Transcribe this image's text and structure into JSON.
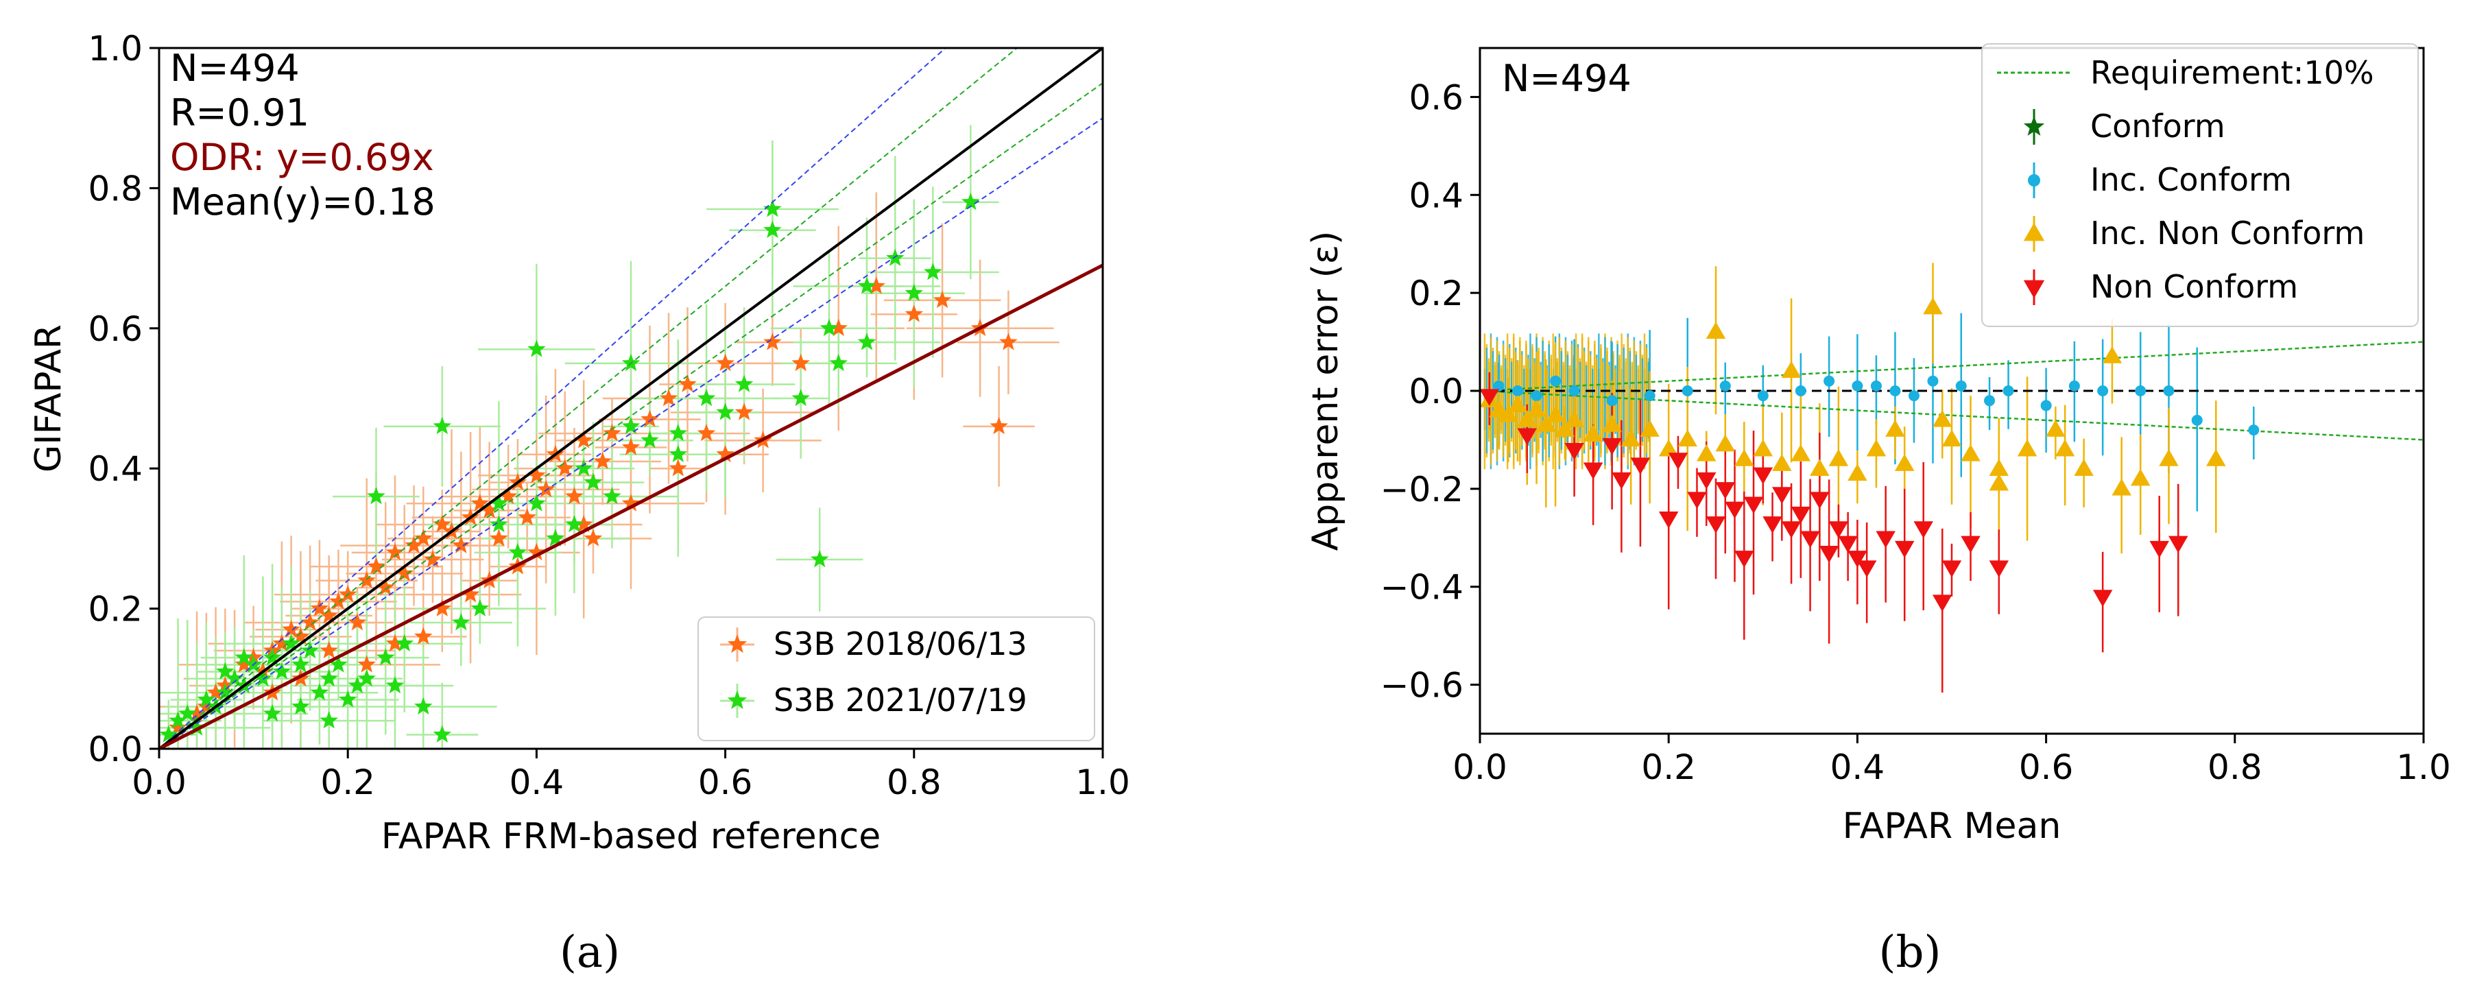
{
  "chart_data": [
    {
      "type": "scatter",
      "panel_label": "(a)",
      "xlabel": "FAPAR FRM-based reference",
      "ylabel": "GIFAPAR",
      "xlim": [
        0,
        1.0
      ],
      "ylim": [
        0,
        1.0
      ],
      "xticks": [
        "0.0",
        "0.2",
        "0.4",
        "0.6",
        "0.8",
        "1.0"
      ],
      "yticks": [
        "0.0",
        "0.2",
        "0.4",
        "0.6",
        "0.8",
        "1.0"
      ],
      "annotations": {
        "n": "N=494",
        "r": "R=0.91",
        "odr": "ODR: y=0.69x",
        "mean": "Mean(y)=0.18"
      },
      "colors": {
        "s2018": "#ff6a13",
        "s2021": "#22dd11",
        "odr": "#8b0000",
        "identity": "#000000",
        "band_blue": "#3344ee",
        "band_green": "#22aa22"
      },
      "lines": {
        "identity": {
          "slope": 1.0,
          "x": [
            0,
            1
          ]
        },
        "odr": {
          "slope": 0.69,
          "x": [
            0,
            1
          ]
        },
        "blue_band": {
          "slopes": [
            1.2,
            0.9
          ]
        },
        "green_band": {
          "slopes": [
            1.1,
            0.95
          ]
        }
      },
      "legend": {
        "position": "lower right",
        "entries": [
          "S3B 2018/06/13",
          "S3B 2021/07/19"
        ]
      },
      "series": [
        {
          "name": "S3B 2018/06/13",
          "marker": "star",
          "x": [
            0.02,
            0.04,
            0.05,
            0.06,
            0.07,
            0.08,
            0.09,
            0.1,
            0.11,
            0.12,
            0.13,
            0.14,
            0.15,
            0.16,
            0.17,
            0.18,
            0.19,
            0.2,
            0.21,
            0.22,
            0.23,
            0.24,
            0.25,
            0.26,
            0.27,
            0.28,
            0.29,
            0.3,
            0.31,
            0.32,
            0.33,
            0.34,
            0.35,
            0.36,
            0.37,
            0.38,
            0.39,
            0.4,
            0.41,
            0.42,
            0.43,
            0.44,
            0.45,
            0.46,
            0.47,
            0.48,
            0.5,
            0.52,
            0.54,
            0.56,
            0.58,
            0.6,
            0.62,
            0.65,
            0.68,
            0.72,
            0.76,
            0.8,
            0.83,
            0.87,
            0.89,
            0.9,
            0.3,
            0.35,
            0.4,
            0.45,
            0.5,
            0.25,
            0.33,
            0.42,
            0.38,
            0.28,
            0.46,
            0.22,
            0.15,
            0.12,
            0.18,
            0.55,
            0.6,
            0.64
          ],
          "y": [
            0.03,
            0.05,
            0.06,
            0.08,
            0.09,
            0.1,
            0.12,
            0.13,
            0.11,
            0.14,
            0.15,
            0.17,
            0.16,
            0.18,
            0.2,
            0.19,
            0.21,
            0.22,
            0.18,
            0.24,
            0.26,
            0.23,
            0.28,
            0.25,
            0.29,
            0.3,
            0.27,
            0.32,
            0.31,
            0.29,
            0.33,
            0.35,
            0.34,
            0.3,
            0.36,
            0.38,
            0.33,
            0.39,
            0.37,
            0.42,
            0.4,
            0.36,
            0.44,
            0.38,
            0.41,
            0.45,
            0.43,
            0.47,
            0.5,
            0.52,
            0.45,
            0.55,
            0.48,
            0.58,
            0.55,
            0.6,
            0.66,
            0.62,
            0.64,
            0.6,
            0.46,
            0.58,
            0.2,
            0.24,
            0.28,
            0.32,
            0.35,
            0.15,
            0.22,
            0.3,
            0.26,
            0.16,
            0.3,
            0.12,
            0.1,
            0.08,
            0.14,
            0.4,
            0.42,
            0.44
          ]
        },
        {
          "name": "S3B 2021/07/19",
          "marker": "star",
          "x": [
            0.01,
            0.02,
            0.03,
            0.04,
            0.05,
            0.06,
            0.07,
            0.08,
            0.09,
            0.1,
            0.11,
            0.12,
            0.13,
            0.14,
            0.15,
            0.16,
            0.17,
            0.18,
            0.19,
            0.2,
            0.21,
            0.22,
            0.24,
            0.26,
            0.28,
            0.3,
            0.32,
            0.34,
            0.36,
            0.38,
            0.4,
            0.42,
            0.44,
            0.46,
            0.48,
            0.5,
            0.52,
            0.55,
            0.58,
            0.6,
            0.62,
            0.65,
            0.68,
            0.7,
            0.72,
            0.75,
            0.78,
            0.8,
            0.82,
            0.86,
            0.23,
            0.3,
            0.36,
            0.4,
            0.45,
            0.5,
            0.55,
            0.65,
            0.71,
            0.75,
            0.12,
            0.15,
            0.18,
            0.07,
            0.09,
            0.25
          ],
          "y": [
            0.02,
            0.04,
            0.05,
            0.03,
            0.07,
            0.06,
            0.08,
            0.1,
            0.09,
            0.12,
            0.1,
            0.13,
            0.11,
            0.15,
            0.12,
            0.14,
            0.08,
            0.1,
            0.12,
            0.07,
            0.09,
            0.1,
            0.13,
            0.15,
            0.06,
            0.02,
            0.18,
            0.2,
            0.35,
            0.28,
            0.57,
            0.3,
            0.32,
            0.38,
            0.36,
            0.46,
            0.44,
            0.42,
            0.5,
            0.48,
            0.52,
            0.77,
            0.5,
            0.27,
            0.55,
            0.58,
            0.7,
            0.65,
            0.68,
            0.78,
            0.36,
            0.46,
            0.32,
            0.35,
            0.4,
            0.55,
            0.45,
            0.74,
            0.6,
            0.66,
            0.05,
            0.06,
            0.04,
            0.11,
            0.13,
            0.09
          ]
        }
      ]
    },
    {
      "type": "scatter",
      "panel_label": "(b)",
      "xlabel": "FAPAR Mean",
      "ylabel": "Apparent error (ε)",
      "xlim": [
        0,
        1.0
      ],
      "ylim": [
        -0.7,
        0.7
      ],
      "xticks": [
        "0.0",
        "0.2",
        "0.4",
        "0.6",
        "0.8",
        "1.0"
      ],
      "yticks": [
        "−0.6",
        "−0.4",
        "−0.2",
        "0.0",
        "0.2",
        "0.4",
        "0.6"
      ],
      "yticks_values": [
        -0.6,
        -0.4,
        -0.2,
        0.0,
        0.2,
        0.4,
        0.6
      ],
      "annotations": {
        "n": "N=494"
      },
      "colors": {
        "requirement": "#22aa22",
        "conform": "#0a6e0a",
        "inc_conform": "#1ab0e0",
        "inc_non_conform": "#f0b400",
        "non_conform": "#ee1111"
      },
      "requirement_percent": 10,
      "legend": {
        "position": "upper right",
        "entries": [
          "Requirement:10%",
          "Conform",
          "Inc. Conform",
          "Inc. Non Conform",
          "Non Conform"
        ]
      },
      "series": [
        {
          "name": "Inc. Conform",
          "marker": "circle",
          "x": [
            0.02,
            0.04,
            0.06,
            0.08,
            0.1,
            0.14,
            0.18,
            0.22,
            0.26,
            0.3,
            0.34,
            0.37,
            0.4,
            0.44,
            0.48,
            0.51,
            0.54,
            0.56,
            0.6,
            0.63,
            0.66,
            0.7,
            0.73,
            0.76,
            0.82,
            0.42,
            0.46
          ],
          "y": [
            0.01,
            0.0,
            -0.01,
            0.02,
            0.0,
            -0.02,
            -0.01,
            0.0,
            0.01,
            -0.01,
            0.0,
            0.02,
            0.01,
            0.0,
            0.02,
            0.01,
            -0.02,
            0.0,
            -0.03,
            0.01,
            0.0,
            0.0,
            0.0,
            -0.06,
            -0.08,
            0.01,
            -0.01
          ]
        },
        {
          "name": "Inc. Non Conform",
          "marker": "triangle-up",
          "x": [
            0.01,
            0.02,
            0.03,
            0.04,
            0.05,
            0.06,
            0.07,
            0.08,
            0.09,
            0.1,
            0.12,
            0.14,
            0.16,
            0.18,
            0.2,
            0.22,
            0.24,
            0.26,
            0.28,
            0.3,
            0.32,
            0.34,
            0.36,
            0.38,
            0.4,
            0.42,
            0.45,
            0.48,
            0.5,
            0.52,
            0.55,
            0.58,
            0.61,
            0.64,
            0.67,
            0.7,
            0.73,
            0.78,
            0.25,
            0.33,
            0.44,
            0.49,
            0.55,
            0.62,
            0.68
          ],
          "y": [
            -0.02,
            -0.04,
            -0.05,
            -0.03,
            -0.06,
            -0.04,
            -0.07,
            -0.05,
            -0.08,
            -0.06,
            -0.09,
            -0.07,
            -0.1,
            -0.08,
            -0.12,
            -0.1,
            -0.13,
            -0.11,
            -0.14,
            -0.12,
            -0.15,
            -0.13,
            -0.16,
            -0.14,
            -0.17,
            -0.12,
            -0.15,
            0.17,
            -0.1,
            -0.13,
            -0.19,
            -0.12,
            -0.08,
            -0.16,
            0.07,
            -0.18,
            -0.14,
            -0.14,
            0.12,
            0.04,
            -0.08,
            -0.06,
            -0.16,
            -0.12,
            -0.2
          ]
        },
        {
          "name": "Non Conform",
          "marker": "triangle-down",
          "x": [
            0.01,
            0.05,
            0.1,
            0.12,
            0.14,
            0.15,
            0.17,
            0.2,
            0.21,
            0.23,
            0.24,
            0.25,
            0.26,
            0.27,
            0.28,
            0.29,
            0.3,
            0.31,
            0.32,
            0.33,
            0.34,
            0.35,
            0.36,
            0.37,
            0.38,
            0.39,
            0.4,
            0.41,
            0.43,
            0.45,
            0.47,
            0.49,
            0.5,
            0.52,
            0.55,
            0.66,
            0.72,
            0.74
          ],
          "y": [
            -0.01,
            -0.09,
            -0.12,
            -0.16,
            -0.11,
            -0.18,
            -0.15,
            -0.26,
            -0.14,
            -0.22,
            -0.18,
            -0.27,
            -0.2,
            -0.24,
            -0.34,
            -0.23,
            -0.17,
            -0.27,
            -0.21,
            -0.28,
            -0.25,
            -0.3,
            -0.22,
            -0.33,
            -0.28,
            -0.31,
            -0.34,
            -0.36,
            -0.3,
            -0.32,
            -0.28,
            -0.43,
            -0.36,
            -0.31,
            -0.36,
            -0.42,
            -0.32,
            -0.31
          ]
        }
      ]
    }
  ]
}
